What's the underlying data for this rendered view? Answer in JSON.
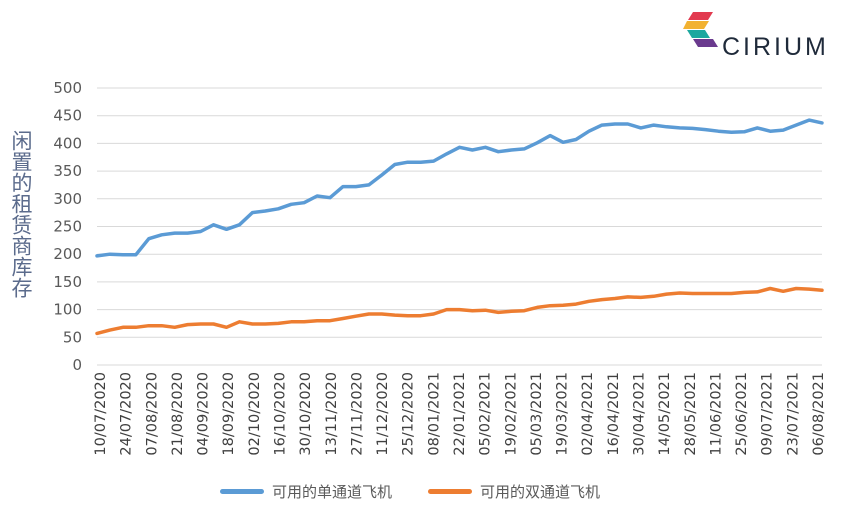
{
  "brand": {
    "name": "CIRIUM"
  },
  "chart_data": {
    "type": "line",
    "ylabel": "闲置的租赁商库存",
    "ylim": [
      0,
      500
    ],
    "yticks": [
      0,
      50,
      100,
      150,
      200,
      250,
      300,
      350,
      400,
      450,
      500
    ],
    "grid": true,
    "legend_position": "bottom",
    "xtick_labels": [
      "10/07/2020",
      "24/07/2020",
      "07/08/2020",
      "21/08/2020",
      "04/09/2020",
      "18/09/2020",
      "02/10/2020",
      "16/10/2020",
      "30/10/2020",
      "13/11/2020",
      "27/11/2020",
      "11/12/2020",
      "25/12/2020",
      "08/01/2021",
      "22/01/2021",
      "05/02/2021",
      "19/02/2021",
      "05/03/2021",
      "19/03/2021",
      "02/04/2021",
      "16/04/2021",
      "30/04/2021",
      "14/05/2021",
      "28/05/2021",
      "11/06/2021",
      "25/06/2021",
      "09/07/2021",
      "23/07/2021",
      "06/08/2021"
    ],
    "series": [
      {
        "name": "可用的单通道飞机",
        "color": "#5b9bd5",
        "values": [
          197,
          200,
          199,
          199,
          228,
          235,
          238,
          238,
          241,
          253,
          245,
          253,
          275,
          278,
          282,
          290,
          293,
          305,
          302,
          322,
          322,
          325,
          343,
          362,
          366,
          366,
          368,
          381,
          393,
          388,
          393,
          385,
          388,
          390,
          401,
          414,
          402,
          407,
          422,
          433,
          435,
          435,
          428,
          433,
          430,
          428,
          427,
          425,
          422,
          420,
          421,
          428,
          422,
          424,
          433,
          442,
          437
        ]
      },
      {
        "name": "可用的双通道飞机",
        "color": "#ed7d31",
        "values": [
          57,
          63,
          68,
          68,
          71,
          71,
          68,
          73,
          74,
          74,
          68,
          78,
          74,
          74,
          75,
          78,
          78,
          80,
          80,
          84,
          88,
          92,
          92,
          90,
          89,
          89,
          92,
          100,
          100,
          98,
          99,
          95,
          97,
          98,
          104,
          107,
          108,
          110,
          115,
          118,
          120,
          123,
          122,
          124,
          128,
          130,
          129,
          129,
          129,
          129,
          131,
          132,
          138,
          133,
          138,
          137,
          135
        ]
      }
    ]
  }
}
